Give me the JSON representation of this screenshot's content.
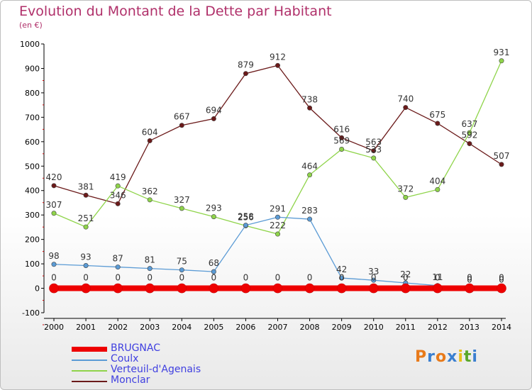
{
  "title": "Evolution du Montant de la Dette par Habitant",
  "subtitle": "(en €)",
  "logo": {
    "text": "Proxiti",
    "letters": [
      {
        "ch": "P",
        "color": "#e87a1a"
      },
      {
        "ch": "r",
        "color": "#3a7fd0"
      },
      {
        "ch": "o",
        "color": "#e87a1a"
      },
      {
        "ch": "x",
        "color": "#3a7fd0"
      },
      {
        "ch": "i",
        "color": "#e8c01a"
      },
      {
        "ch": "t",
        "color": "#5aa82a"
      },
      {
        "ch": "i",
        "color": "#3a7fd0"
      }
    ]
  },
  "chart_data": {
    "type": "line",
    "x": [
      2000,
      2001,
      2002,
      2003,
      2004,
      2005,
      2006,
      2007,
      2008,
      2009,
      2010,
      2011,
      2012,
      2013,
      2014
    ],
    "ylim": [
      -100,
      1000
    ],
    "yticks": [
      -100,
      0,
      100,
      200,
      300,
      400,
      500,
      600,
      700,
      800,
      900,
      1000
    ],
    "grid": false,
    "legend_position": "bottom-left",
    "series": [
      {
        "name": "BRUGNAC",
        "color": "#ee0000",
        "values": [
          0,
          0,
          0,
          0,
          0,
          0,
          0,
          0,
          0,
          0,
          0,
          0,
          0,
          0,
          0
        ],
        "labels": [
          "0",
          "0",
          "0",
          "0",
          "0",
          "0",
          "0",
          "0",
          "0",
          "0",
          "0",
          "0",
          "0",
          "0",
          "0"
        ]
      },
      {
        "name": "Coulx",
        "color": "#5b9bd5",
        "values": [
          98,
          93,
          87,
          81,
          75,
          68,
          258,
          291,
          283,
          42,
          33,
          22,
          11,
          0,
          0
        ],
        "labels": [
          "98",
          "93",
          "87",
          "81",
          "75",
          "68",
          "258",
          "291",
          "283",
          "42",
          "33",
          "22",
          "11",
          "0",
          "0"
        ]
      },
      {
        "name": "Verteuil-d'Agenais",
        "color": "#8fd44a",
        "values": [
          307,
          251,
          419,
          362,
          327,
          293,
          256,
          222,
          464,
          569,
          533,
          372,
          404,
          637,
          931
        ],
        "labels": [
          "307",
          "251",
          "419",
          "362",
          "327",
          "293",
          "256",
          "222",
          "464",
          "569",
          "533",
          "372",
          "404",
          "637",
          "931"
        ]
      },
      {
        "name": "Monclar",
        "color": "#6b1a1a",
        "values": [
          420,
          381,
          346,
          604,
          667,
          694,
          879,
          912,
          738,
          616,
          563,
          740,
          675,
          592,
          507
        ],
        "labels": [
          "420",
          "381",
          "346",
          "604",
          "667",
          "694",
          "879",
          "912",
          "738",
          "616",
          "563",
          "740",
          "675",
          "592",
          "507"
        ]
      }
    ]
  }
}
